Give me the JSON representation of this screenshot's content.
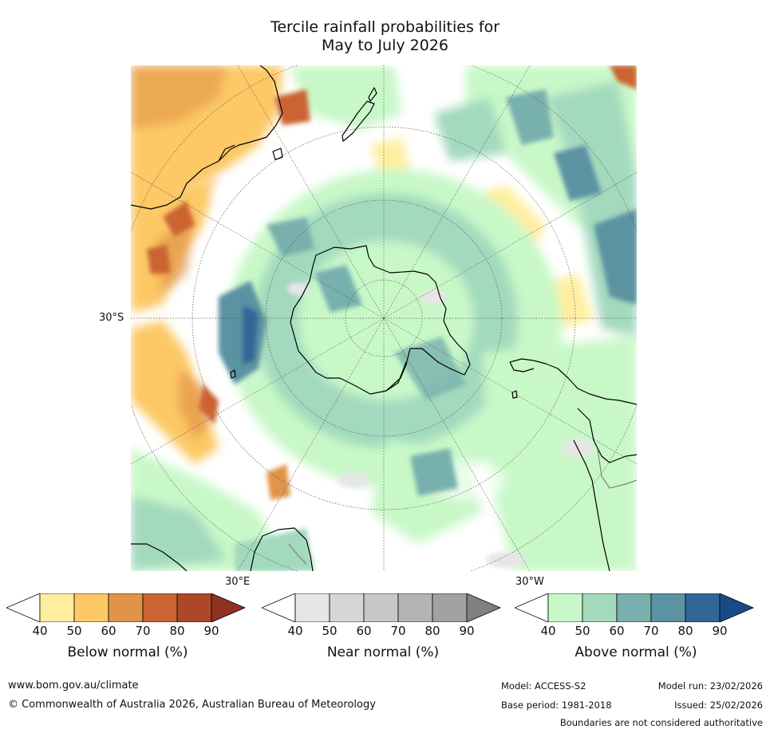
{
  "title": {
    "line1": "Tercile rainfall probabilities for",
    "line2": "May to July 2026"
  },
  "map": {
    "projection": "south polar stereographic",
    "lat_label": "30°S",
    "lon_labels": [
      "30°E",
      "30°W"
    ]
  },
  "legends": [
    {
      "name": "below",
      "title": "Below normal (%)",
      "ticks": [
        "40",
        "50",
        "60",
        "70",
        "80",
        "90"
      ],
      "colors": [
        "#ffeea0",
        "#fdc865",
        "#e09447",
        "#cb6433",
        "#ac4728",
        "#8f3121"
      ]
    },
    {
      "name": "near",
      "title": "Near normal (%)",
      "ticks": [
        "40",
        "50",
        "60",
        "70",
        "80",
        "90"
      ],
      "colors": [
        "#e6e6e6",
        "#d6d6d6",
        "#c8c8c8",
        "#b4b4b4",
        "#a2a2a2",
        "#808080"
      ]
    },
    {
      "name": "above",
      "title": "Above normal (%)",
      "ticks": [
        "40",
        "50",
        "60",
        "70",
        "80",
        "90"
      ],
      "colors": [
        "#c8f8c8",
        "#a3d9bd",
        "#78b0ad",
        "#5c93a2",
        "#326699",
        "#184b86"
      ]
    }
  ],
  "footer": {
    "url": "www.bom.gov.au/climate",
    "copyright": "© Commonwealth of Australia 2026, Australian Bureau of Meteorology",
    "model": "Model: ACCESS-S2",
    "base_period": "Base period: 1981-2018",
    "model_run": "Model run: 23/02/2026",
    "issued": "Issued: 25/02/2026",
    "disclaimer": "Boundaries are not considered authoritative"
  }
}
